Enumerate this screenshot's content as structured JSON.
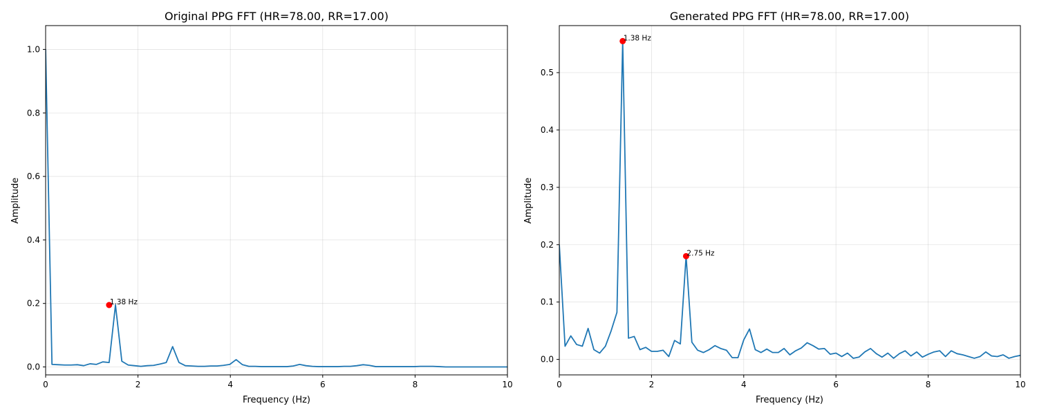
{
  "chart_data": [
    {
      "type": "line",
      "title": "Original PPG FFT (HR=78.00, RR=17.00)",
      "xlabel": "Frequency (Hz)",
      "ylabel": "Amplitude",
      "xlim": [
        0,
        10
      ],
      "ylim": [
        -0.025,
        1.075
      ],
      "xticks": [
        0,
        2,
        4,
        6,
        8,
        10
      ],
      "yticks": [
        0.0,
        0.2,
        0.4,
        0.6,
        0.8,
        1.0
      ],
      "xtick_labels": [
        "0",
        "2",
        "4",
        "6",
        "8",
        "10"
      ],
      "ytick_labels": [
        "0.0",
        "0.2",
        "0.4",
        "0.6",
        "0.8",
        "1.0"
      ],
      "grid": true,
      "color": "#1f77b4",
      "peak_color": "#ff0000",
      "series": [
        {
          "x": [
            0.0,
            0.1375,
            0.275,
            0.4125,
            0.55,
            0.6875,
            0.825,
            0.9625,
            1.1,
            1.2375,
            1.375,
            1.5125,
            1.65,
            1.7875,
            1.925,
            2.0625,
            2.2,
            2.3375,
            2.475,
            2.6125,
            2.75,
            2.8875,
            3.025,
            3.1625,
            3.3,
            3.4375,
            3.575,
            3.7125,
            3.85,
            3.9875,
            4.125,
            4.2625,
            4.4,
            4.5375,
            4.675,
            4.8125,
            4.95,
            5.0875,
            5.225,
            5.3625,
            5.5,
            5.6375,
            5.775,
            5.9125,
            6.05,
            6.1875,
            6.325,
            6.4625,
            6.6,
            6.7375,
            6.875,
            7.0125,
            7.15,
            7.2875,
            7.425,
            7.5625,
            7.7,
            7.8375,
            7.975,
            8.1125,
            8.25,
            8.3875,
            8.525,
            8.6625,
            8.8,
            8.9375,
            9.075,
            9.2125,
            9.35,
            9.4875,
            9.625,
            9.7625,
            9.9,
            10.0
          ],
          "y": [
            1.0,
            0.008,
            0.007,
            0.006,
            0.006,
            0.007,
            0.004,
            0.01,
            0.008,
            0.016,
            0.014,
            0.195,
            0.018,
            0.006,
            0.004,
            0.002,
            0.004,
            0.005,
            0.009,
            0.014,
            0.064,
            0.014,
            0.004,
            0.003,
            0.002,
            0.002,
            0.003,
            0.003,
            0.005,
            0.008,
            0.023,
            0.007,
            0.002,
            0.002,
            0.001,
            0.001,
            0.001,
            0.001,
            0.001,
            0.003,
            0.008,
            0.004,
            0.002,
            0.001,
            0.001,
            0.001,
            0.001,
            0.002,
            0.002,
            0.004,
            0.007,
            0.005,
            0.001,
            0.001,
            0.001,
            0.001,
            0.001,
            0.001,
            0.001,
            0.002,
            0.002,
            0.002,
            0.001,
            0.0,
            0.0,
            0.0,
            0.0,
            0.0,
            0.0,
            0.0,
            0.0,
            0.0,
            0.0,
            0.0
          ]
        }
      ],
      "peaks": [
        {
          "x": 1.375,
          "y": 0.195,
          "label": "1.38 Hz"
        }
      ]
    },
    {
      "type": "line",
      "title": "Generated PPG FFT (HR=78.00, RR=17.00)",
      "xlabel": "Frequency (Hz)",
      "ylabel": "Amplitude",
      "xlim": [
        0,
        10
      ],
      "ylim": [
        -0.027,
        0.582
      ],
      "xticks": [
        0,
        2,
        4,
        6,
        8,
        10
      ],
      "yticks": [
        0.0,
        0.1,
        0.2,
        0.3,
        0.4,
        0.5
      ],
      "xtick_labels": [
        "0",
        "2",
        "4",
        "6",
        "8",
        "10"
      ],
      "ytick_labels": [
        "0.0",
        "0.1",
        "0.2",
        "0.3",
        "0.4",
        "0.5"
      ],
      "grid": true,
      "color": "#1f77b4",
      "peak_color": "#ff0000",
      "series": [
        {
          "x": [
            0.0,
            0.125,
            0.25,
            0.375,
            0.5,
            0.625,
            0.75,
            0.875,
            1.0,
            1.125,
            1.25,
            1.375,
            1.5,
            1.625,
            1.75,
            1.875,
            2.0,
            2.125,
            2.25,
            2.375,
            2.5,
            2.625,
            2.75,
            2.875,
            3.0,
            3.125,
            3.25,
            3.375,
            3.5,
            3.625,
            3.75,
            3.875,
            4.0,
            4.125,
            4.25,
            4.375,
            4.5,
            4.625,
            4.75,
            4.875,
            5.0,
            5.125,
            5.25,
            5.375,
            5.5,
            5.625,
            5.75,
            5.875,
            6.0,
            6.125,
            6.25,
            6.375,
            6.5,
            6.625,
            6.75,
            6.875,
            7.0,
            7.125,
            7.25,
            7.375,
            7.5,
            7.625,
            7.75,
            7.875,
            8.0,
            8.125,
            8.25,
            8.375,
            8.5,
            8.625,
            8.75,
            8.875,
            9.0,
            9.125,
            9.25,
            9.375,
            9.5,
            9.625,
            9.75,
            9.875,
            10.0
          ],
          "y": [
            0.2,
            0.023,
            0.041,
            0.026,
            0.023,
            0.054,
            0.017,
            0.011,
            0.023,
            0.05,
            0.082,
            0.555,
            0.037,
            0.04,
            0.017,
            0.021,
            0.014,
            0.014,
            0.016,
            0.005,
            0.033,
            0.027,
            0.18,
            0.03,
            0.016,
            0.012,
            0.017,
            0.024,
            0.019,
            0.016,
            0.003,
            0.003,
            0.034,
            0.053,
            0.017,
            0.012,
            0.018,
            0.012,
            0.012,
            0.019,
            0.008,
            0.015,
            0.02,
            0.029,
            0.024,
            0.018,
            0.019,
            0.009,
            0.011,
            0.005,
            0.011,
            0.002,
            0.004,
            0.013,
            0.019,
            0.01,
            0.004,
            0.011,
            0.002,
            0.01,
            0.015,
            0.006,
            0.013,
            0.004,
            0.009,
            0.013,
            0.015,
            0.005,
            0.015,
            0.01,
            0.008,
            0.005,
            0.002,
            0.005,
            0.013,
            0.006,
            0.005,
            0.008,
            0.002,
            0.005,
            0.007
          ]
        }
      ],
      "peaks": [
        {
          "x": 1.375,
          "y": 0.555,
          "label": "1.38 Hz"
        },
        {
          "x": 2.75,
          "y": 0.18,
          "label": "2.75 Hz"
        }
      ]
    }
  ]
}
